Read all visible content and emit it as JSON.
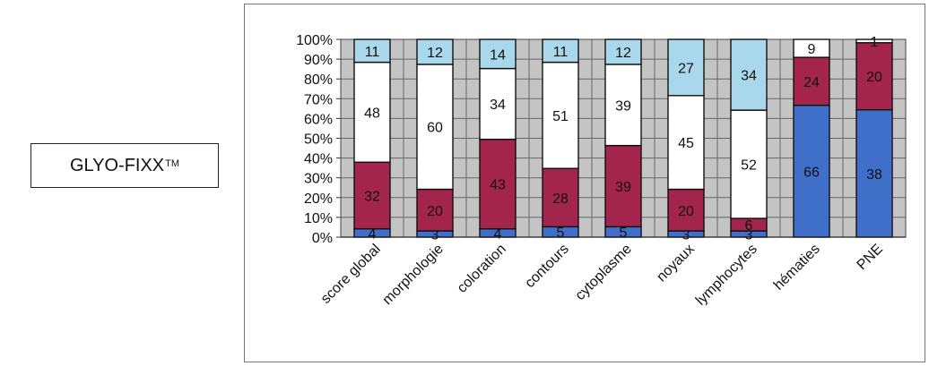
{
  "label_box": {
    "text": "GLYO-FIXX",
    "superscript": "TM"
  },
  "chart_data": {
    "type": "bar",
    "stacked": true,
    "normalized": true,
    "categories": [
      "score global",
      "morphologie",
      "coloration",
      "contours",
      "cytoplasme",
      "noyaux",
      "lymphocytes",
      "hématies",
      "PNE"
    ],
    "y_ticks": [
      "0%",
      "10%",
      "20%",
      "30%",
      "40%",
      "50%",
      "60%",
      "70%",
      "80%",
      "90%",
      "100%"
    ],
    "ylim": [
      0,
      100
    ],
    "grid": true,
    "legend": "none",
    "series": [
      {
        "color": "#3f6fc9",
        "values": [
          4,
          3,
          4,
          5,
          5,
          3,
          3,
          66,
          38
        ]
      },
      {
        "color": "#a3254e",
        "values": [
          32,
          20,
          43,
          28,
          39,
          20,
          6,
          24,
          20
        ]
      },
      {
        "color": "#ffffff",
        "values": [
          48,
          60,
          34,
          51,
          39,
          45,
          52,
          9,
          1
        ]
      },
      {
        "color": "#a9d8ec",
        "values": [
          11,
          12,
          14,
          11,
          12,
          27,
          34,
          0,
          0
        ]
      }
    ]
  }
}
